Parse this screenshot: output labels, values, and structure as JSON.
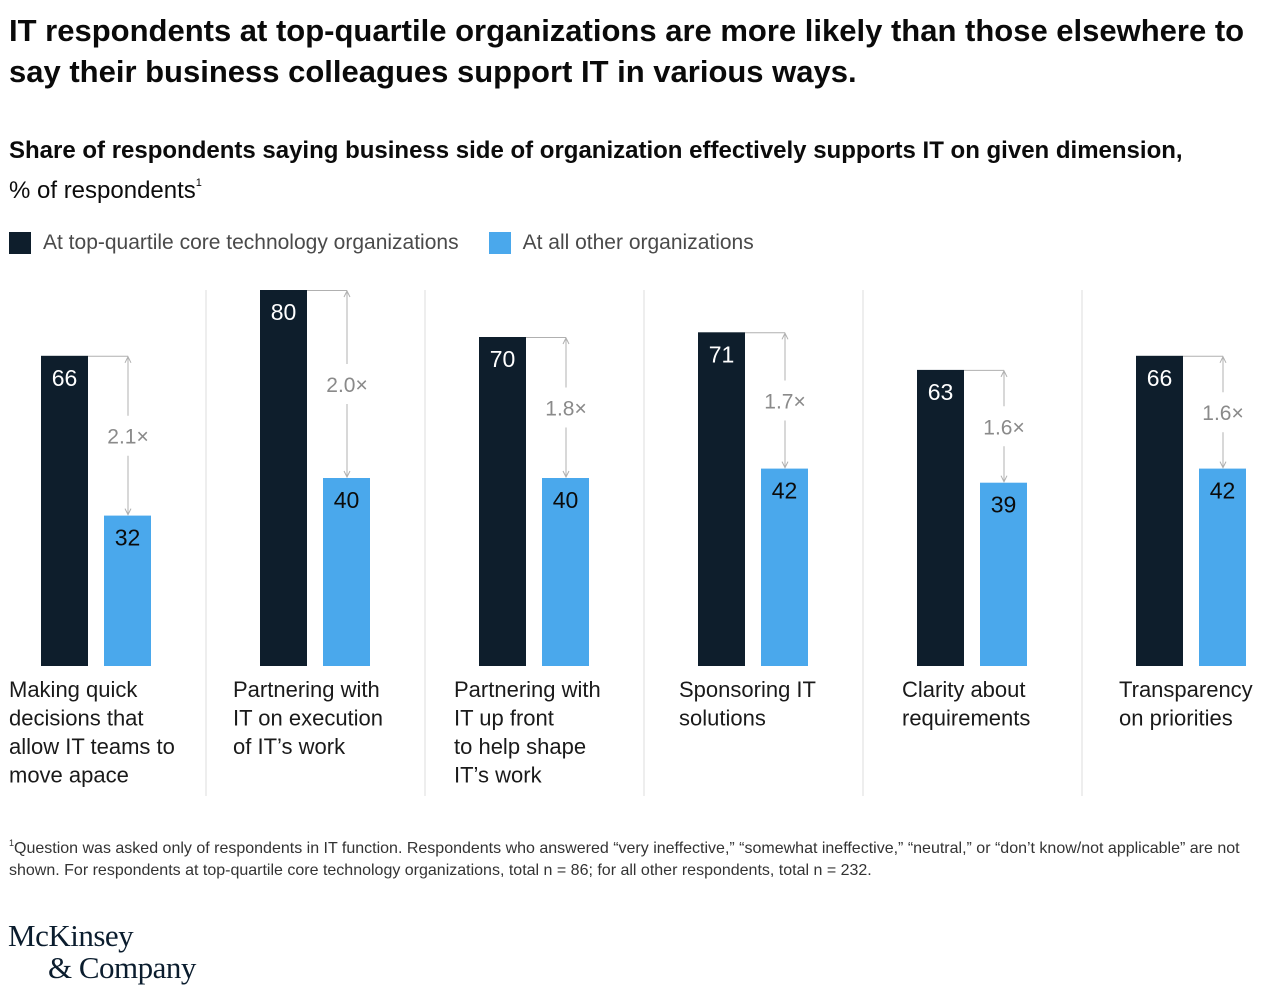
{
  "title": "IT respondents at top-quartile organizations are more likely than those elsewhere to say their business colleagues support IT in various ways.",
  "subtitle_bold": "Share of respondents saying business side of organization effectively supports IT on given dimension,",
  "subtitle_rest": "% of respondents",
  "subtitle_footnote_mark": "1",
  "footnote_mark": "1",
  "footnote": "Question was asked only of respondents in IT function. Respondents who answered “very ineffective,” “somewhat ineffective,” “neutral,” or “don’t know/not applicable” are not shown. For respondents at top-quartile core technology organizations, total n = 86; for all other respondents, total n = 232.",
  "logo_line1": "McKinsey",
  "logo_line2": "& Company",
  "colors": {
    "top": "#0e1e2c",
    "other": "#4aa8ec",
    "arrow": "#b0b0b0",
    "divider": "#dddddd",
    "multiplier": "#8a8a8a"
  },
  "chart_data": {
    "type": "bar",
    "title": "Share of respondents saying business side of organization effectively supports IT on given dimension",
    "ylabel": "% of respondents",
    "ylim": [
      0,
      80
    ],
    "legend_position": "top-left",
    "grid": false,
    "categories": [
      [
        "Making quick",
        "decisions that",
        "allow IT teams to",
        "move apace"
      ],
      [
        "Partnering with",
        "IT on execution",
        "of IT’s work"
      ],
      [
        "Partnering with",
        "IT up front",
        "to help shape",
        "IT’s work"
      ],
      [
        "Sponsoring IT",
        "solutions"
      ],
      [
        "Clarity about",
        "requirements"
      ],
      [
        "Transparency",
        "on priorities"
      ]
    ],
    "series": [
      {
        "name": "At top-quartile core technology organizations",
        "values": [
          66,
          80,
          70,
          71,
          63,
          66
        ]
      },
      {
        "name": "At all other organizations",
        "values": [
          32,
          40,
          40,
          42,
          39,
          42
        ]
      }
    ],
    "multipliers": [
      "2.1×",
      "2.0×",
      "1.8×",
      "1.7×",
      "1.6×",
      "1.6×"
    ]
  }
}
